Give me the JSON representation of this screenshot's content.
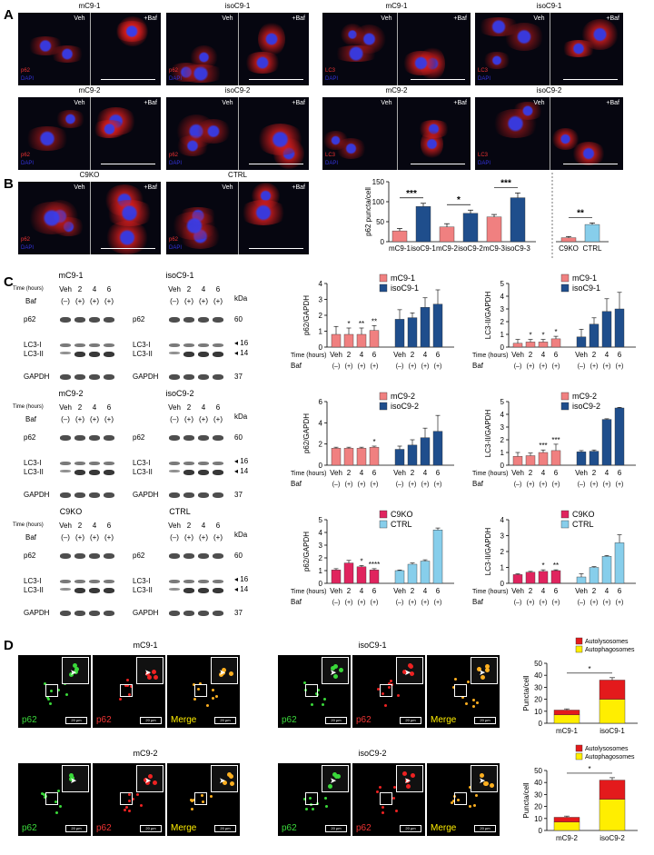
{
  "panels": {
    "A": "A",
    "B": "B",
    "C": "C",
    "D": "D"
  },
  "panelA": {
    "p62_groups": [
      {
        "title": "mC9-1",
        "left": "Veh",
        "right": "+Baf",
        "ch1": "p62",
        "ch2": "DAPI"
      },
      {
        "title": "isoC9-1",
        "left": "Veh",
        "right": "+Baf",
        "ch1": "p62",
        "ch2": "DAPI"
      },
      {
        "title": "mC9-2",
        "left": "Veh",
        "right": "+Baf",
        "ch1": "p62",
        "ch2": "DAPI"
      },
      {
        "title": "isoC9-2",
        "left": "Veh",
        "right": "+Baf",
        "ch1": "p62",
        "ch2": "DAPI"
      }
    ],
    "lc3_groups": [
      {
        "title": "mC9-1",
        "left": "Veh",
        "right": "+Baf",
        "ch1": "LC3",
        "ch2": "DAPI"
      },
      {
        "title": "isoC9-1",
        "left": "Veh",
        "right": "+Baf",
        "ch1": "LC3",
        "ch2": "DAPI"
      },
      {
        "title": "mC9-2",
        "left": "Veh",
        "right": "+Baf",
        "ch1": "LC3",
        "ch2": "DAPI"
      },
      {
        "title": "isoC9-2",
        "left": "Veh",
        "right": "+Baf",
        "ch1": "LC3",
        "ch2": "DAPI"
      }
    ]
  },
  "panelB": {
    "groups": [
      {
        "title": "C9KO",
        "left": "Veh",
        "right": "+Baf",
        "ch1": "p62",
        "ch2": "DAPI"
      },
      {
        "title": "CTRL",
        "left": "Veh",
        "right": "+Baf",
        "ch1": "p62",
        "ch2": "DAPI"
      }
    ]
  },
  "panelC": {
    "blots": [
      {
        "title": "mC9-1",
        "time_label": "Time (hours)",
        "baf_label": "Baf",
        "times": [
          "Veh",
          "2",
          "4",
          "6"
        ],
        "baf": [
          "(–)",
          "(+)",
          "(+)",
          "(+)"
        ],
        "rows": [
          "p62",
          "LC3-I",
          "LC3-II",
          "GAPDH"
        ],
        "kda": []
      },
      {
        "title": "isoC9-1",
        "time_label": "",
        "baf_label": "",
        "times": [
          "Veh",
          "2",
          "4",
          "6"
        ],
        "baf": [
          "(–)",
          "(+)",
          "(+)",
          "(+)"
        ],
        "rows": [
          "p62",
          "LC3-I",
          "LC3-II",
          "GAPDH"
        ],
        "kda": [
          "kDa",
          "60",
          "16",
          "14",
          "37"
        ]
      },
      {
        "title": "mC9-2",
        "time_label": "Time (hours)",
        "baf_label": "Baf",
        "times": [
          "Veh",
          "2",
          "4",
          "6"
        ],
        "baf": [
          "(–)",
          "(+)",
          "(+)",
          "(+)"
        ],
        "rows": [
          "p62",
          "LC3-I",
          "LC3-II",
          "GAPDH"
        ],
        "kda": []
      },
      {
        "title": "isoC9-2",
        "time_label": "",
        "baf_label": "",
        "times": [
          "Veh",
          "2",
          "4",
          "6"
        ],
        "baf": [
          "(–)",
          "(+)",
          "(+)",
          "(+)"
        ],
        "rows": [
          "p62",
          "LC3-I",
          "LC3-II",
          "GAPDH"
        ],
        "kda": [
          "kDa",
          "60",
          "16",
          "14",
          "37"
        ]
      },
      {
        "title": "C9KO",
        "time_label": "Time (hours)",
        "baf_label": "Baf",
        "times": [
          "Veh",
          "2",
          "4",
          "6"
        ],
        "baf": [
          "(–)",
          "(+)",
          "(+)",
          "(+)"
        ],
        "rows": [
          "p62",
          "LC3-I",
          "LC3-II",
          "GAPDH"
        ],
        "kda": []
      },
      {
        "title": "CTRL",
        "time_label": "",
        "baf_label": "",
        "times": [
          "Veh",
          "2",
          "4",
          "6"
        ],
        "baf": [
          "(–)",
          "(+)",
          "(+)",
          "(+)"
        ],
        "rows": [
          "p62",
          "LC3-I",
          "LC3-II",
          "GAPDH"
        ],
        "kda": [
          "kDa",
          "60",
          "16",
          "14",
          "37"
        ]
      }
    ]
  },
  "panelD": {
    "rows": [
      {
        "left_title": "mC9-1",
        "right_title": "isoC9-1",
        "labels": [
          "p62",
          "p62",
          "Merge"
        ],
        "scale": "20 µm"
      },
      {
        "left_title": "mC9-2",
        "right_title": "isoC9-2",
        "labels": [
          "p62",
          "p62",
          "Merge"
        ],
        "scale": "20 µm"
      }
    ]
  },
  "colors": {
    "salmon": "#f08080",
    "navy": "#1f4e8c",
    "crimson": "#e0245e",
    "lightblue": "#87ceeb",
    "red": "#e31a1c",
    "yellow": "#ffee00",
    "green": "#3ad83a"
  },
  "chart_data": [
    {
      "id": "B-p62",
      "type": "bar",
      "ylabel": "p62 puncta/cell",
      "ylim": [
        0,
        150
      ],
      "yticks": [
        0,
        50,
        100,
        150
      ],
      "categories": [
        "mC9-1",
        "isoC9-1",
        "mC9-2",
        "isoC9-2",
        "mC9-3",
        "isoC9-3",
        "C9KO",
        "CTRL"
      ],
      "values": [
        27,
        88,
        37,
        71,
        62,
        110,
        10,
        43
      ],
      "errors": [
        6,
        8,
        8,
        8,
        6,
        12,
        3,
        4
      ],
      "bar_colors": [
        "salmon",
        "navy",
        "salmon",
        "navy",
        "salmon",
        "navy",
        "salmon",
        "lightblue"
      ],
      "significance": [
        {
          "pair": [
            0,
            1
          ],
          "label": "***"
        },
        {
          "pair": [
            2,
            3
          ],
          "label": "*"
        },
        {
          "pair": [
            4,
            5
          ],
          "label": "***"
        },
        {
          "pair": [
            6,
            7
          ],
          "label": "**"
        }
      ]
    },
    {
      "id": "C-p62-1",
      "type": "bar",
      "ylabel": "p62/GAPDH",
      "ylim": [
        0,
        4
      ],
      "yticks": [
        0,
        1,
        2,
        3,
        4
      ],
      "legend": [
        "mC9-1",
        "isoC9-1"
      ],
      "legend_colors": [
        "salmon",
        "navy"
      ],
      "time_label": "Time (hours)",
      "baf_label": "Baf",
      "x": [
        "Veh",
        "2",
        "4",
        "6"
      ],
      "baf": [
        "(–)",
        "(+)",
        "(+)",
        "(+)"
      ],
      "series": [
        {
          "name": "mC9-1",
          "color": "salmon",
          "values": [
            0.8,
            0.8,
            0.8,
            1.05
          ],
          "errors": [
            0.5,
            0.4,
            0.4,
            0.3
          ],
          "stars": [
            "",
            "*",
            "**",
            "**"
          ]
        },
        {
          "name": "isoC9-1",
          "color": "navy",
          "values": [
            1.75,
            1.85,
            2.5,
            2.7
          ],
          "errors": [
            0.6,
            0.3,
            0.6,
            0.9
          ],
          "stars": [
            "",
            "",
            "",
            ""
          ]
        }
      ]
    },
    {
      "id": "C-lc3-1",
      "type": "bar",
      "ylabel": "LC3-II/GAPDH",
      "ylim": [
        0,
        5
      ],
      "yticks": [
        0,
        1,
        2,
        3,
        4,
        5
      ],
      "legend": [
        "mC9-1",
        "isoC9-1"
      ],
      "legend_colors": [
        "salmon",
        "navy"
      ],
      "time_label": "Time (hours)",
      "baf_label": "Baf",
      "x": [
        "Veh",
        "2",
        "4",
        "6"
      ],
      "baf": [
        "(–)",
        "(+)",
        "(+)",
        "(+)"
      ],
      "series": [
        {
          "name": "mC9-1",
          "color": "salmon",
          "values": [
            0.3,
            0.4,
            0.4,
            0.65
          ],
          "errors": [
            0.3,
            0.2,
            0.2,
            0.2
          ],
          "stars": [
            "",
            "*",
            "*",
            "*"
          ]
        },
        {
          "name": "isoC9-1",
          "color": "navy",
          "values": [
            0.8,
            1.8,
            2.8,
            3.0
          ],
          "errors": [
            0.6,
            0.5,
            1.0,
            1.3
          ],
          "stars": [
            "",
            "",
            "",
            ""
          ]
        }
      ]
    },
    {
      "id": "C-p62-2",
      "type": "bar",
      "ylabel": "p62/GAPDH",
      "ylim": [
        0,
        6
      ],
      "yticks": [
        0,
        2,
        4,
        6
      ],
      "legend": [
        "mC9-2",
        "isoC9-2"
      ],
      "legend_colors": [
        "salmon",
        "navy"
      ],
      "time_label": "Time (hours)",
      "baf_label": "Baf",
      "x": [
        "Veh",
        "2",
        "4",
        "6"
      ],
      "baf": [
        "(–)",
        "(+)",
        "(+)",
        "(+)"
      ],
      "series": [
        {
          "name": "mC9-2",
          "color": "salmon",
          "values": [
            1.6,
            1.6,
            1.6,
            1.7
          ],
          "errors": [
            0.1,
            0.1,
            0.1,
            0.1
          ],
          "stars": [
            "",
            "",
            "",
            "*"
          ]
        },
        {
          "name": "isoC9-2",
          "color": "navy",
          "values": [
            1.5,
            1.9,
            2.6,
            3.2
          ],
          "errors": [
            0.3,
            0.5,
            0.9,
            1.5
          ],
          "stars": [
            "",
            "",
            "",
            ""
          ]
        }
      ]
    },
    {
      "id": "C-lc3-2",
      "type": "bar",
      "ylabel": "LC3-II/GAPDH",
      "ylim": [
        0,
        5
      ],
      "yticks": [
        0,
        1,
        2,
        3,
        4,
        5
      ],
      "legend": [
        "mC9-2",
        "isoC9-2"
      ],
      "legend_colors": [
        "salmon",
        "navy"
      ],
      "time_label": "Time (hours)",
      "baf_label": "Baf",
      "x": [
        "Veh",
        "2",
        "4",
        "6"
      ],
      "baf": [
        "(–)",
        "(+)",
        "(+)",
        "(+)"
      ],
      "series": [
        {
          "name": "mC9-2",
          "color": "salmon",
          "values": [
            0.7,
            0.75,
            1.0,
            1.15
          ],
          "errors": [
            0.3,
            0.2,
            0.2,
            0.5
          ],
          "stars": [
            "",
            "",
            "***",
            "***"
          ]
        },
        {
          "name": "isoC9-2",
          "color": "navy",
          "values": [
            1.05,
            1.1,
            3.6,
            4.5
          ],
          "errors": [
            0.1,
            0.1,
            0.05,
            0.05
          ],
          "stars": [
            "",
            "",
            "",
            ""
          ]
        }
      ]
    },
    {
      "id": "C-p62-3",
      "type": "bar",
      "ylabel": "p62/GAPDH",
      "ylim": [
        0,
        5
      ],
      "yticks": [
        0,
        1,
        2,
        3,
        4,
        5
      ],
      "legend": [
        "C9KO",
        "CTRL"
      ],
      "legend_colors": [
        "crimson",
        "lightblue"
      ],
      "time_label": "Time (hours)",
      "baf_label": "Baf",
      "x": [
        "Veh",
        "2",
        "4",
        "6"
      ],
      "baf": [
        "(–)",
        "(+)",
        "(+)",
        "(+)"
      ],
      "series": [
        {
          "name": "C9KO",
          "color": "crimson",
          "values": [
            1.05,
            1.6,
            1.3,
            1.05
          ],
          "errors": [
            0.1,
            0.2,
            0.1,
            0.1
          ],
          "stars": [
            "",
            "",
            "*",
            "****"
          ]
        },
        {
          "name": "CTRL",
          "color": "lightblue",
          "values": [
            1.0,
            1.5,
            1.75,
            4.2
          ],
          "errors": [
            0.05,
            0.1,
            0.1,
            0.15
          ],
          "stars": [
            "",
            "",
            "",
            ""
          ]
        }
      ]
    },
    {
      "id": "C-lc3-3",
      "type": "bar",
      "ylabel": "LC3-II/GAPDH",
      "ylim": [
        0,
        4
      ],
      "yticks": [
        0,
        1,
        2,
        3,
        4
      ],
      "legend": [
        "C9KO",
        "CTRL"
      ],
      "legend_colors": [
        "crimson",
        "lightblue"
      ],
      "time_label": "Time (hours)",
      "baf_label": "Baf",
      "x": [
        "Veh",
        "2",
        "4",
        "6"
      ],
      "baf": [
        "(–)",
        "(+)",
        "(+)",
        "(+)"
      ],
      "series": [
        {
          "name": "C9KO",
          "color": "crimson",
          "values": [
            0.55,
            0.7,
            0.75,
            0.8
          ],
          "errors": [
            0.05,
            0.05,
            0.1,
            0.05
          ],
          "stars": [
            "",
            "",
            "*",
            "**"
          ]
        },
        {
          "name": "CTRL",
          "color": "lightblue",
          "values": [
            0.4,
            1.0,
            1.7,
            2.55
          ],
          "errors": [
            0.2,
            0.05,
            0.05,
            0.5
          ],
          "stars": [
            "",
            "",
            "",
            ""
          ]
        }
      ]
    },
    {
      "id": "D-1",
      "type": "bar",
      "stacked": true,
      "ylabel": "Puncta/cell",
      "ylim": [
        0,
        50
      ],
      "yticks": [
        0,
        10,
        20,
        30,
        40,
        50
      ],
      "legend": [
        "Autolysosomes",
        "Autophagosomes"
      ],
      "legend_colors": [
        "red",
        "yellow"
      ],
      "categories": [
        "mC9-1",
        "isoC9-1"
      ],
      "series": [
        {
          "name": "Autophagosomes",
          "color": "yellow",
          "values": [
            7,
            20
          ]
        },
        {
          "name": "Autolysosomes",
          "color": "red",
          "values": [
            4,
            16
          ]
        }
      ],
      "errors": [
        1,
        2
      ],
      "significance": [
        {
          "pair": [
            0,
            1
          ],
          "label": "*"
        }
      ]
    },
    {
      "id": "D-2",
      "type": "bar",
      "stacked": true,
      "ylabel": "Puncta/cell",
      "ylim": [
        0,
        50
      ],
      "yticks": [
        0,
        10,
        20,
        30,
        40,
        50
      ],
      "legend": [
        "Autolysosomes",
        "Autophagosomes"
      ],
      "legend_colors": [
        "red",
        "yellow"
      ],
      "categories": [
        "mC9-2",
        "isoC9-2"
      ],
      "series": [
        {
          "name": "Autophagosomes",
          "color": "yellow",
          "values": [
            7,
            26
          ]
        },
        {
          "name": "Autolysosomes",
          "color": "red",
          "values": [
            4,
            16
          ]
        }
      ],
      "errors": [
        1,
        2
      ],
      "significance": [
        {
          "pair": [
            0,
            1
          ],
          "label": "*"
        }
      ]
    }
  ]
}
